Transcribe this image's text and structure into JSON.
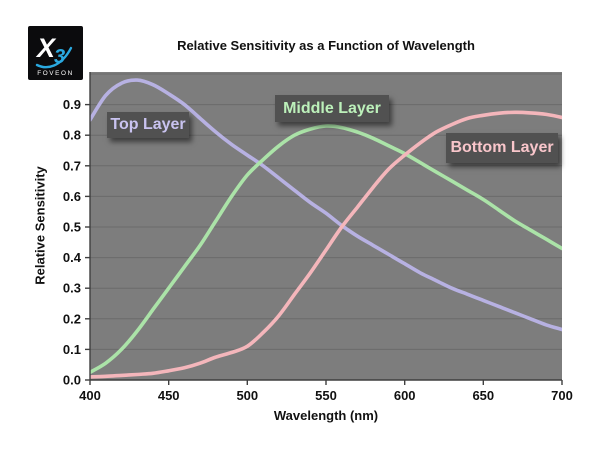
{
  "logo": {
    "x_glyph": "X",
    "three_glyph": "3",
    "brand": "FOVEON",
    "bg_color": "#0b0b0d",
    "accent_color": "#2aa9e0"
  },
  "chart_data": {
    "type": "line",
    "title": "Relative Sensitivity as a Function of Wavelength",
    "xlabel": "Wavelength (nm)",
    "ylabel": "Relative Sensitivity",
    "xlim": [
      400,
      700
    ],
    "ylim": [
      0,
      1.0
    ],
    "x_ticks": [
      400,
      450,
      500,
      550,
      600,
      650,
      700
    ],
    "y_ticks": [
      "0.0",
      "0.1",
      "0.2",
      "0.3",
      "0.4",
      "0.5",
      "0.6",
      "0.7",
      "0.8",
      "0.9"
    ],
    "grid_levels": [
      0.1,
      0.2,
      0.3,
      0.4,
      0.5,
      0.6,
      0.7,
      0.8,
      0.9,
      1.0
    ],
    "grid": "horizontal",
    "legend_position": "labels-on-chart",
    "plot_bg": "#7d7d7d",
    "grid_color": "#6b6b6b",
    "axis_color": "#3f3f3f",
    "x": [
      400,
      410,
      420,
      430,
      440,
      450,
      460,
      470,
      480,
      490,
      500,
      510,
      520,
      530,
      540,
      550,
      560,
      570,
      580,
      590,
      600,
      610,
      620,
      630,
      640,
      650,
      660,
      670,
      680,
      690,
      700
    ],
    "series": [
      {
        "name": "Top Layer",
        "color": "#b7b1e2",
        "values": [
          0.85,
          0.93,
          0.97,
          0.98,
          0.965,
          0.935,
          0.9,
          0.855,
          0.81,
          0.77,
          0.735,
          0.7,
          0.66,
          0.62,
          0.58,
          0.545,
          0.505,
          0.47,
          0.44,
          0.41,
          0.38,
          0.35,
          0.325,
          0.3,
          0.28,
          0.26,
          0.24,
          0.22,
          0.2,
          0.18,
          0.165
        ]
      },
      {
        "name": "Middle Layer",
        "color": "#abe3a8",
        "values": [
          0.025,
          0.055,
          0.1,
          0.16,
          0.23,
          0.3,
          0.37,
          0.44,
          0.52,
          0.6,
          0.67,
          0.72,
          0.765,
          0.8,
          0.82,
          0.83,
          0.825,
          0.81,
          0.79,
          0.765,
          0.74,
          0.71,
          0.68,
          0.65,
          0.62,
          0.59,
          0.555,
          0.52,
          0.49,
          0.46,
          0.43
        ]
      },
      {
        "name": "Bottom Layer",
        "color": "#f4b6bb",
        "values": [
          0.01,
          0.012,
          0.015,
          0.018,
          0.022,
          0.03,
          0.04,
          0.055,
          0.075,
          0.09,
          0.11,
          0.155,
          0.21,
          0.28,
          0.35,
          0.425,
          0.5,
          0.565,
          0.63,
          0.69,
          0.735,
          0.775,
          0.81,
          0.835,
          0.855,
          0.865,
          0.872,
          0.875,
          0.873,
          0.868,
          0.858
        ]
      }
    ]
  }
}
